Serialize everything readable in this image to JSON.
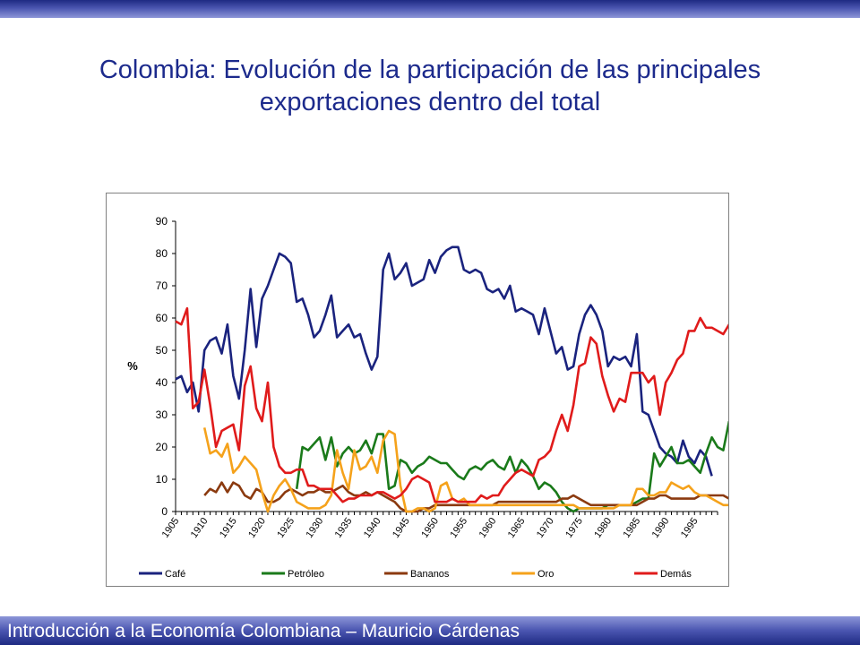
{
  "title": {
    "line1": "Colombia: Evolución de la participación de las principales",
    "line2": "exportaciones dentro del total"
  },
  "footer": "Introducción a la Economía Colombiana – Mauricio Cárdenas",
  "colors": {
    "bar_dark": "#1e2a82",
    "bar_light": "#8d96d8",
    "title": "#1c2a8c"
  },
  "chart_data": {
    "type": "line",
    "title": "",
    "xlabel": "",
    "ylabel": "%",
    "ylim": [
      0,
      90
    ],
    "yticks": [
      0,
      10,
      20,
      30,
      40,
      50,
      60,
      70,
      80,
      90
    ],
    "xtick_labels": [
      "1905",
      "1910",
      "1915",
      "1920",
      "1925",
      "1930",
      "1935",
      "1940",
      "1945",
      "1950",
      "1955",
      "1960",
      "1965",
      "1970",
      "1975",
      "1980",
      "1985",
      "1990",
      "1995"
    ],
    "x_start": 1905,
    "x_end": 1999,
    "grid": false,
    "legend_position": "bottom",
    "series": [
      {
        "name": "Café",
        "color": "#1a237e",
        "start": 1905,
        "values": [
          41,
          42,
          37,
          40,
          31,
          50,
          53,
          54,
          49,
          58,
          42,
          35,
          50,
          69,
          51,
          66,
          70,
          75,
          80,
          79,
          77,
          65,
          66,
          61,
          54,
          56,
          61,
          67,
          54,
          56,
          58,
          54,
          55,
          49,
          44,
          48,
          75,
          80,
          72,
          74,
          77,
          70,
          71,
          72,
          78,
          74,
          79,
          81,
          82,
          82,
          75,
          74,
          75,
          74,
          69,
          68,
          69,
          66,
          70,
          62,
          63,
          62,
          61,
          55,
          63,
          56,
          49,
          51,
          44,
          45,
          55,
          61,
          64,
          61,
          56,
          45,
          48,
          47,
          48,
          45,
          55,
          31,
          30,
          25,
          20,
          18,
          17,
          15,
          22,
          17,
          15,
          19,
          17,
          11
        ]
      },
      {
        "name": "Petróleo",
        "color": "#1a7a1a",
        "start": 1926,
        "values": [
          7,
          20,
          19,
          21,
          23,
          16,
          23,
          14,
          18,
          20,
          18,
          19,
          22,
          18,
          24,
          24,
          7,
          8,
          16,
          15,
          12,
          14,
          15,
          17,
          16,
          15,
          15,
          13,
          11,
          10,
          13,
          14,
          13,
          15,
          16,
          14,
          13,
          17,
          12,
          16,
          14,
          11,
          7,
          9,
          8,
          6,
          3,
          1,
          0,
          1,
          1,
          1,
          1,
          1,
          2,
          2,
          2,
          2,
          2,
          3,
          4,
          4,
          18,
          14,
          17,
          20,
          15,
          15,
          16,
          14,
          12,
          18,
          23,
          20,
          19,
          28
        ]
      },
      {
        "name": "Bananos",
        "color": "#8b3a0f",
        "start": 1910,
        "values": [
          5,
          7,
          6,
          9,
          6,
          9,
          8,
          5,
          4,
          7,
          6,
          3,
          3,
          4,
          6,
          7,
          6,
          5,
          6,
          6,
          7,
          6,
          6,
          7,
          8,
          6,
          5,
          5,
          6,
          5,
          6,
          5,
          4,
          3,
          1,
          0,
          0,
          0,
          1,
          1,
          2,
          2,
          2,
          2,
          2,
          2,
          2,
          2,
          2,
          2,
          2,
          3,
          3,
          3,
          3,
          3,
          3,
          3,
          3,
          3,
          3,
          3,
          4,
          4,
          5,
          4,
          3,
          2,
          2,
          2,
          2,
          2,
          2,
          2,
          2,
          2,
          3,
          4,
          4,
          5,
          5,
          4,
          4,
          4,
          4,
          4,
          5,
          5,
          5,
          5,
          5,
          4,
          4,
          4,
          4,
          4,
          5
        ]
      },
      {
        "name": "Oro",
        "color": "#f5a21b",
        "start": 1910,
        "values": [
          26,
          18,
          19,
          17,
          21,
          12,
          14,
          17,
          15,
          13,
          6,
          0,
          5,
          8,
          10,
          7,
          3,
          2,
          1,
          1,
          1,
          2,
          5,
          19,
          12,
          7,
          19,
          13,
          14,
          17,
          12,
          22,
          25,
          24,
          8,
          0,
          0,
          1,
          1,
          0,
          1,
          8,
          9,
          4,
          3,
          4,
          2,
          2,
          2,
          2,
          2,
          2,
          2,
          2,
          2,
          2,
          2,
          2,
          2,
          2,
          2,
          2,
          2,
          2,
          2,
          1,
          1,
          1,
          1,
          1,
          1,
          1,
          2,
          2,
          2,
          7,
          7,
          5,
          5,
          6,
          6,
          9,
          8,
          7,
          8,
          6,
          5,
          5,
          4,
          3,
          2,
          2,
          1,
          1,
          1,
          0
        ]
      },
      {
        "name": "Demás",
        "color": "#e01b1b",
        "start": 1905,
        "values": [
          59,
          58,
          63,
          32,
          34,
          44,
          33,
          20,
          25,
          26,
          27,
          19,
          39,
          45,
          32,
          28,
          40,
          20,
          14,
          12,
          12,
          13,
          13,
          8,
          8,
          7,
          7,
          7,
          5,
          3,
          4,
          4,
          5,
          5,
          5,
          6,
          6,
          5,
          4,
          5,
          7,
          10,
          11,
          10,
          9,
          3,
          3,
          3,
          4,
          3,
          3,
          3,
          3,
          5,
          4,
          5,
          5,
          8,
          10,
          12,
          13,
          12,
          11,
          16,
          17,
          19,
          25,
          30,
          25,
          33,
          45,
          46,
          54,
          52,
          42,
          36,
          31,
          35,
          34,
          43,
          43,
          43,
          40,
          42,
          30,
          40,
          43,
          47,
          49,
          56,
          56,
          60,
          57,
          57,
          56,
          55,
          58,
          54
        ]
      }
    ]
  }
}
